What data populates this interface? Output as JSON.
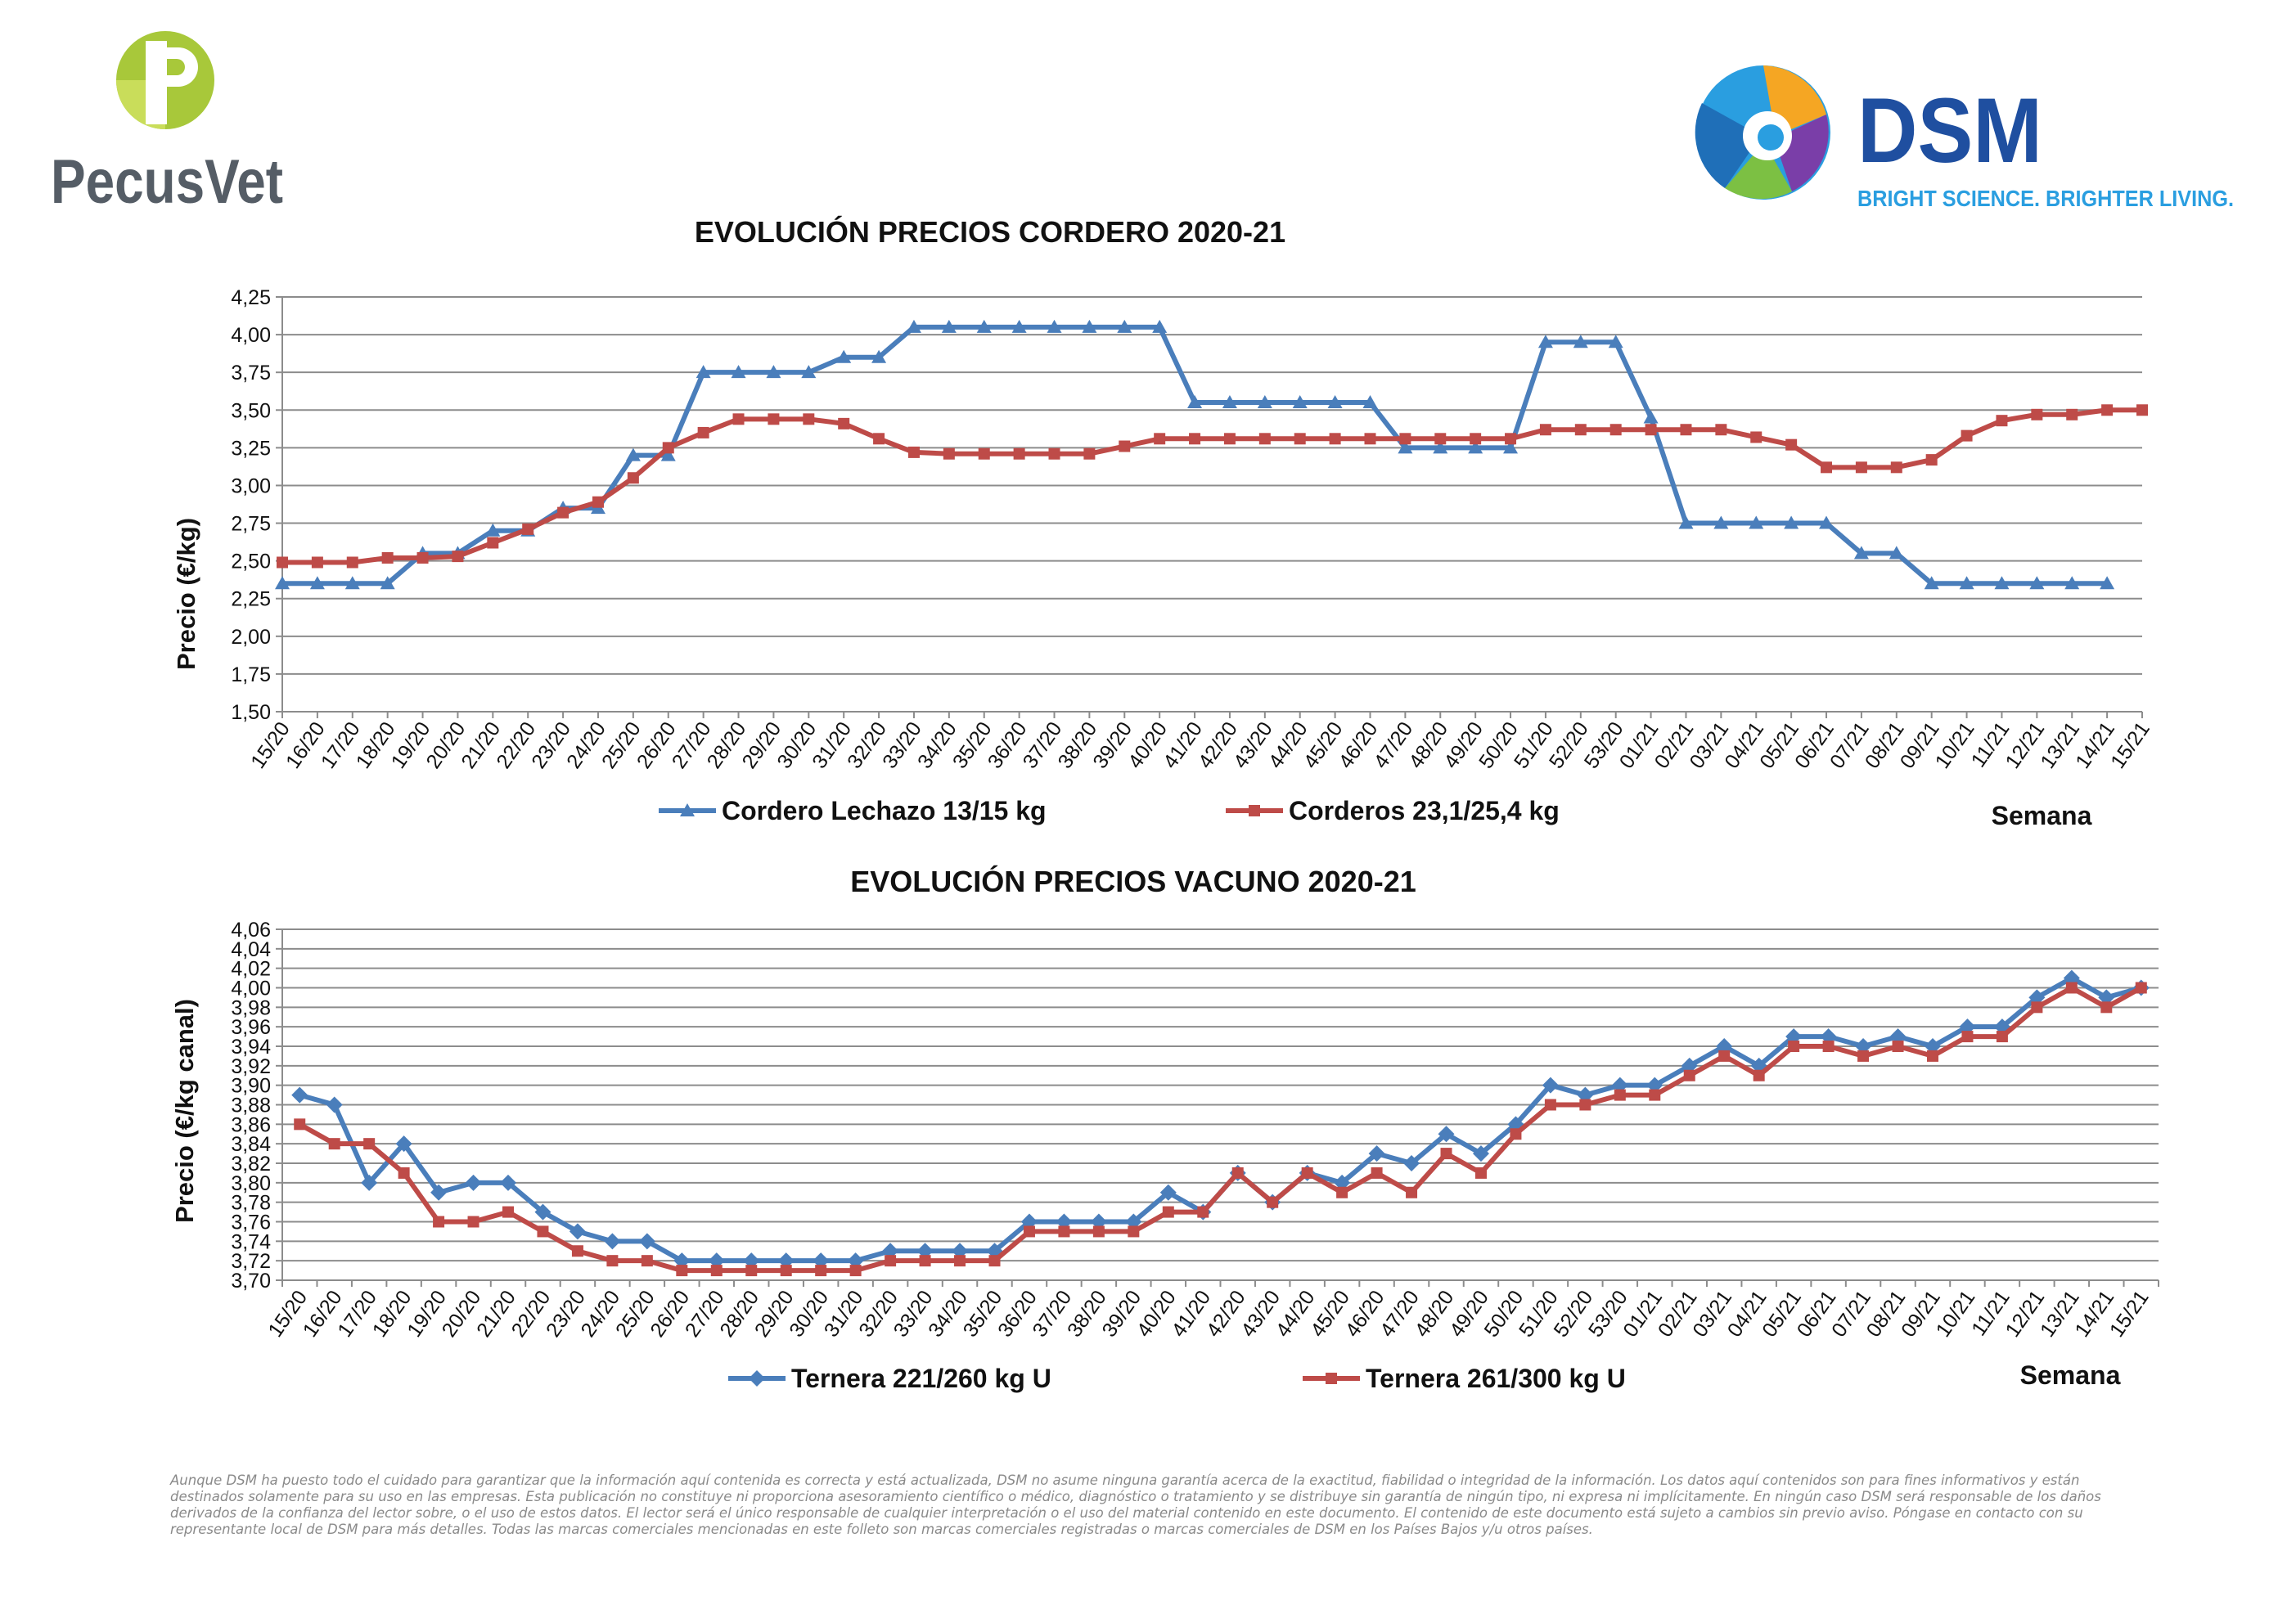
{
  "logos": {
    "pecusvet_text": "PecusVet",
    "dsm_text": "DSM",
    "dsm_tagline": "BRIGHT SCIENCE. BRIGHTER LIVING."
  },
  "colors": {
    "blue": "#4a7ebb",
    "red": "#be4b48",
    "grid": "#8c8c8c"
  },
  "weeks": [
    "15/20",
    "16/20",
    "17/20",
    "18/20",
    "19/20",
    "20/20",
    "21/20",
    "22/20",
    "23/20",
    "24/20",
    "25/20",
    "26/20",
    "27/20",
    "28/20",
    "29/20",
    "30/20",
    "31/20",
    "32/20",
    "33/20",
    "34/20",
    "35/20",
    "36/20",
    "37/20",
    "38/20",
    "39/20",
    "40/20",
    "41/20",
    "42/20",
    "43/20",
    "44/20",
    "45/20",
    "46/20",
    "47/20",
    "48/20",
    "49/20",
    "50/20",
    "51/20",
    "52/20",
    "53/20",
    "01/21",
    "02/21",
    "03/21",
    "04/21",
    "05/21",
    "06/21",
    "07/21",
    "08/21",
    "09/21",
    "10/21",
    "11/21",
    "12/21",
    "13/21",
    "14/21",
    "15/21"
  ],
  "chart_data": [
    {
      "type": "line",
      "title": "EVOLUCIÓN PRECIOS CORDERO 2020-21",
      "ylabel": "Precio (€/kg)",
      "xlabel": "Semana",
      "ylim": [
        1.5,
        4.25
      ],
      "yticks": [
        "1,50",
        "1,75",
        "2,00",
        "2,25",
        "2,50",
        "2,75",
        "3,00",
        "3,25",
        "3,50",
        "3,75",
        "4,00",
        "4,25"
      ],
      "grid": true,
      "legend": "bottom",
      "series": [
        {
          "name": "Cordero Lechazo 13/15 kg",
          "color": "#4a7ebb",
          "marker": "triangle",
          "values": [
            2.35,
            2.35,
            2.35,
            2.35,
            2.55,
            2.55,
            2.7,
            2.7,
            2.85,
            2.85,
            3.2,
            3.2,
            3.75,
            3.75,
            3.75,
            3.75,
            3.85,
            3.85,
            4.05,
            4.05,
            4.05,
            4.05,
            4.05,
            4.05,
            4.05,
            4.05,
            3.55,
            3.55,
            3.55,
            3.55,
            3.55,
            3.55,
            3.25,
            3.25,
            3.25,
            3.25,
            3.95,
            3.95,
            3.95,
            3.45,
            2.75,
            2.75,
            2.75,
            2.75,
            2.75,
            2.55,
            2.55,
            2.35,
            2.35,
            2.35,
            2.35,
            2.35,
            2.35,
            null
          ]
        },
        {
          "name": "Corderos 23,1/25,4 kg",
          "color": "#be4b48",
          "marker": "square",
          "values": [
            2.49,
            2.49,
            2.49,
            2.52,
            2.52,
            2.53,
            2.62,
            2.71,
            2.82,
            2.89,
            3.05,
            3.25,
            3.35,
            3.44,
            3.44,
            3.44,
            3.41,
            3.31,
            3.22,
            3.21,
            3.21,
            3.21,
            3.21,
            3.21,
            3.26,
            3.31,
            3.31,
            3.31,
            3.31,
            3.31,
            3.31,
            3.31,
            3.31,
            3.31,
            3.31,
            3.31,
            3.37,
            3.37,
            3.37,
            3.37,
            3.37,
            3.37,
            3.32,
            3.27,
            3.12,
            3.12,
            3.12,
            3.17,
            3.33,
            3.43,
            3.47,
            3.47,
            3.5,
            3.5
          ]
        }
      ]
    },
    {
      "type": "line",
      "title": "EVOLUCIÓN PRECIOS VACUNO 2020-21",
      "ylabel": "Precio (€/kg canal)",
      "xlabel": "Semana",
      "ylim": [
        3.7,
        4.06
      ],
      "yticks": [
        "3,70",
        "3,72",
        "3,74",
        "3,76",
        "3,78",
        "3,80",
        "3,82",
        "3,84",
        "3,86",
        "3,88",
        "3,90",
        "3,92",
        "3,94",
        "3,96",
        "3,98",
        "4,00",
        "4,02",
        "4,04",
        "4,06"
      ],
      "grid": true,
      "legend": "bottom",
      "series": [
        {
          "name": "Ternera 221/260 kg U",
          "color": "#4a7ebb",
          "marker": "diamond",
          "values": [
            3.89,
            3.88,
            3.8,
            3.84,
            3.79,
            3.8,
            3.8,
            3.77,
            3.75,
            3.74,
            3.74,
            3.72,
            3.72,
            3.72,
            3.72,
            3.72,
            3.72,
            3.73,
            3.73,
            3.73,
            3.73,
            3.76,
            3.76,
            3.76,
            3.76,
            3.79,
            3.77,
            3.81,
            3.78,
            3.81,
            3.8,
            3.83,
            3.82,
            3.85,
            3.83,
            3.86,
            3.9,
            3.89,
            3.9,
            3.9,
            3.92,
            3.94,
            3.92,
            3.95,
            3.95,
            3.94,
            3.95,
            3.94,
            3.96,
            3.96,
            3.99,
            4.01,
            3.99,
            4.0
          ]
        },
        {
          "name": "Ternera 261/300 kg U",
          "color": "#be4b48",
          "marker": "square",
          "values": [
            3.86,
            3.84,
            3.84,
            3.81,
            3.76,
            3.76,
            3.77,
            3.75,
            3.73,
            3.72,
            3.72,
            3.71,
            3.71,
            3.71,
            3.71,
            3.71,
            3.71,
            3.72,
            3.72,
            3.72,
            3.72,
            3.75,
            3.75,
            3.75,
            3.75,
            3.77,
            3.77,
            3.81,
            3.78,
            3.81,
            3.79,
            3.81,
            3.79,
            3.83,
            3.81,
            3.85,
            3.88,
            3.88,
            3.89,
            3.89,
            3.91,
            3.93,
            3.91,
            3.94,
            3.94,
            3.93,
            3.94,
            3.93,
            3.95,
            3.95,
            3.98,
            4.0,
            3.98,
            4.0
          ]
        }
      ]
    }
  ],
  "disclaimer": "Aunque DSM ha puesto todo el cuidado para garantizar que la información aquí contenida es correcta y está actualizada, DSM no asume ninguna garantía acerca de la exactitud, fiabilidad o integridad de la información. Los datos aquí contenidos son para fines informativos y están destinados solamente para su uso en las empresas. Esta publicación no constituye ni proporciona asesoramiento científico o médico, diagnóstico o tratamiento y se distribuye sin garantía de ningún tipo, ni expresa ni implícitamente. En ningún caso DSM será responsable de los daños derivados de la confianza del lector sobre, o el uso de estos datos. El lector será el único responsable de cualquier interpretación o el uso del material contenido en este documento. El contenido de este documento está sujeto a cambios sin previo aviso. Póngase en contacto con su representante local de DSM para más detalles. Todas las marcas comerciales mencionadas en este folleto son marcas comerciales registradas o marcas comerciales de DSM en los Países Bajos y/u otros países."
}
